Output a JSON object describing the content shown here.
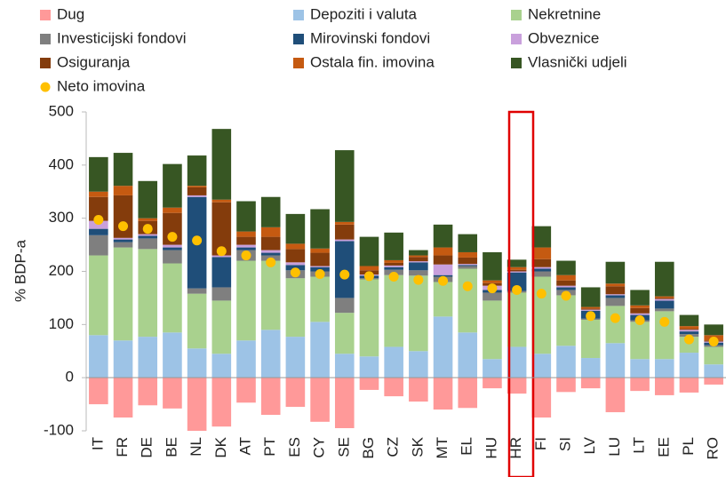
{
  "chart_data": {
    "type": "stacked_bar",
    "categories": [
      "IT",
      "FR",
      "DE",
      "BE",
      "NL",
      "DK",
      "AT",
      "PT",
      "ES",
      "CY",
      "SE",
      "BG",
      "CZ",
      "SK",
      "MT",
      "EL",
      "HU",
      "HR",
      "FI",
      "SI",
      "LV",
      "LU",
      "LT",
      "EE",
      "PL",
      "RO"
    ],
    "ylabel": "% BDP-a",
    "ylim": [
      -100,
      500
    ],
    "yticks": [
      -100,
      0,
      100,
      200,
      300,
      400,
      500
    ],
    "grid": false,
    "series": [
      {
        "name": "Dug",
        "color": "#ff9999",
        "values": [
          -50,
          -75,
          -52,
          -58,
          -105,
          -92,
          -47,
          -70,
          -55,
          -83,
          -95,
          -23,
          -35,
          -45,
          -60,
          -57,
          -20,
          -30,
          -75,
          -27,
          -20,
          -65,
          -25,
          -33,
          -28,
          -13
        ]
      },
      {
        "name": "Depoziti i valuta",
        "color": "#9dc3e6",
        "values": [
          80,
          70,
          77,
          85,
          55,
          45,
          70,
          90,
          77,
          105,
          45,
          40,
          58,
          50,
          115,
          85,
          35,
          58,
          45,
          60,
          37,
          65,
          35,
          35,
          47,
          25
        ]
      },
      {
        "name": "Nekretnine",
        "color": "#a9d18e",
        "values": [
          150,
          175,
          165,
          130,
          103,
          100,
          150,
          130,
          110,
          85,
          77,
          145,
          135,
          142,
          65,
          120,
          110,
          102,
          145,
          95,
          72,
          70,
          70,
          90,
          30,
          33
        ]
      },
      {
        "name": "Investicijski fondovi",
        "color": "#7f7f7f",
        "values": [
          38,
          10,
          20,
          25,
          10,
          25,
          20,
          10,
          15,
          10,
          28,
          2,
          10,
          10,
          10,
          5,
          15,
          3,
          10,
          10,
          2,
          15,
          3,
          5,
          5,
          3
        ]
      },
      {
        "name": "Mirovinski fondovi",
        "color": "#1f4e79",
        "values": [
          12,
          5,
          5,
          5,
          172,
          57,
          5,
          5,
          10,
          8,
          107,
          5,
          5,
          15,
          3,
          2,
          5,
          35,
          5,
          5,
          15,
          5,
          10,
          15,
          5,
          5
        ]
      },
      {
        "name": "Obveznice",
        "color": "#c9a0dc",
        "values": [
          15,
          3,
          3,
          5,
          3,
          3,
          5,
          5,
          5,
          2,
          3,
          2,
          3,
          2,
          20,
          2,
          8,
          2,
          3,
          3,
          2,
          2,
          3,
          3,
          3,
          2
        ]
      },
      {
        "name": "Osiguranja",
        "color": "#843c0c",
        "values": [
          45,
          80,
          25,
          60,
          15,
          100,
          15,
          25,
          25,
          25,
          28,
          8,
          5,
          8,
          17,
          12,
          5,
          3,
          15,
          10,
          2,
          15,
          10,
          2,
          2,
          2
        ]
      },
      {
        "name": "Ostala fin. imovina",
        "color": "#c55a11",
        "values": [
          10,
          18,
          5,
          10,
          3,
          5,
          10,
          18,
          10,
          8,
          5,
          8,
          5,
          3,
          15,
          10,
          5,
          5,
          22,
          10,
          3,
          5,
          5,
          3,
          5,
          10
        ]
      },
      {
        "name": "Vlasnički udjeli",
        "color": "#375623",
        "values": [
          65,
          62,
          70,
          82,
          57,
          133,
          57,
          57,
          56,
          74,
          135,
          55,
          52,
          10,
          43,
          34,
          53,
          14,
          40,
          27,
          37,
          41,
          29,
          65,
          21,
          20
        ]
      }
    ],
    "points": {
      "name": "Neto imovina",
      "color": "#ffc000",
      "values": [
        297,
        285,
        280,
        265,
        258,
        238,
        230,
        217,
        198,
        195,
        194,
        191,
        190,
        184,
        182,
        172,
        168,
        165,
        158,
        154,
        116,
        112,
        108,
        105,
        72,
        68
      ]
    }
  }
}
